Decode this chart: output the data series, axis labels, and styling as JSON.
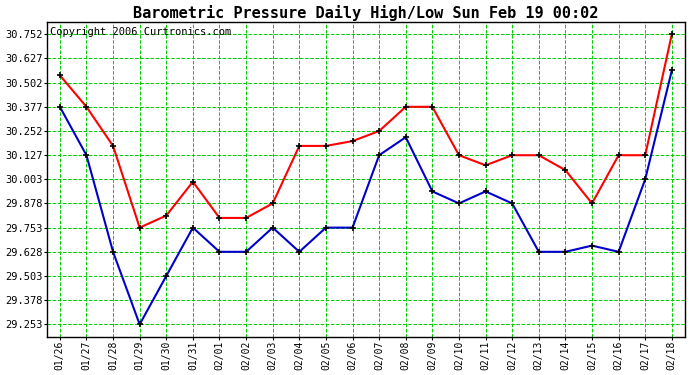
{
  "title": "Barometric Pressure Daily High/Low Sun Feb 19 00:02",
  "copyright": "Copyright 2006 Curtronics.com",
  "dates": [
    "01/26",
    "01/27",
    "01/28",
    "01/29",
    "01/30",
    "01/31",
    "02/01",
    "02/02",
    "02/03",
    "02/04",
    "02/05",
    "02/06",
    "02/07",
    "02/08",
    "02/09",
    "02/10",
    "02/11",
    "02/12",
    "02/13",
    "02/14",
    "02/15",
    "02/16",
    "02/17",
    "02/18"
  ],
  "high_values": [
    30.54,
    30.377,
    30.175,
    29.753,
    29.815,
    29.99,
    29.803,
    29.803,
    29.878,
    30.175,
    30.175,
    30.2,
    30.252,
    30.377,
    30.377,
    30.127,
    30.075,
    30.127,
    30.127,
    30.05,
    29.878,
    30.127,
    30.127,
    30.752
  ],
  "low_values": [
    30.377,
    30.127,
    29.628,
    29.253,
    29.503,
    29.753,
    29.628,
    29.628,
    29.753,
    29.628,
    29.753,
    29.753,
    30.127,
    30.22,
    29.94,
    29.878,
    29.94,
    29.878,
    29.628,
    29.628,
    29.66,
    29.628,
    30.003,
    30.565
  ],
  "high_color": "#ff0000",
  "low_color": "#0000cc",
  "bg_color": "#ffffff",
  "grid_color": "#00cc00",
  "title_color": "#000000",
  "marker_color": "#000000",
  "ylim_min": 29.19,
  "ylim_max": 30.815,
  "ytick_values": [
    29.253,
    29.378,
    29.503,
    29.628,
    29.753,
    29.878,
    30.003,
    30.127,
    30.252,
    30.377,
    30.502,
    30.627,
    30.752
  ],
  "title_fontsize": 11,
  "copyright_fontsize": 7.5,
  "xtick_fontsize": 7,
  "ytick_fontsize": 7.5,
  "line_width": 1.5,
  "figwidth": 6.9,
  "figheight": 3.75,
  "dpi": 100
}
